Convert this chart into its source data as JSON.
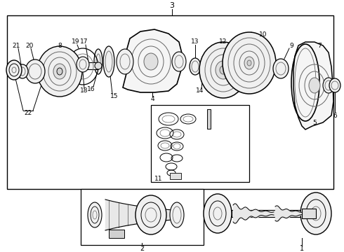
{
  "bg_color": "#ffffff",
  "line_color": "#000000",
  "gray_color": "#666666",
  "figsize": [
    4.9,
    3.6
  ],
  "dpi": 100
}
